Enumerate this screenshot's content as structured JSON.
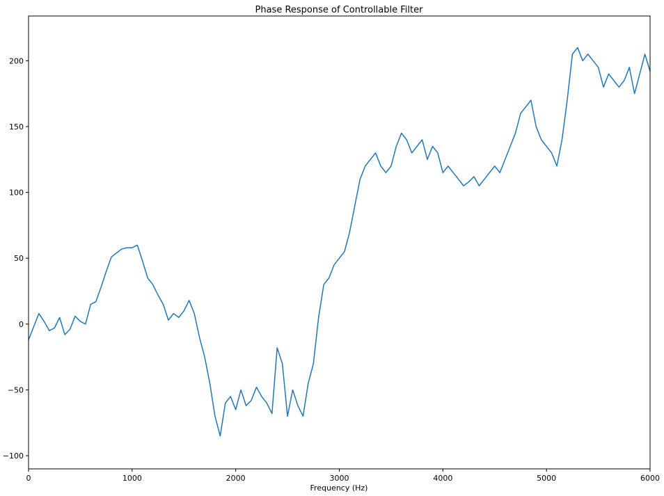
{
  "chart_data": {
    "type": "line",
    "title": "Phase Response of Controllable Filter",
    "xlabel": "Frequency (Hz)",
    "ylabel": "",
    "xlim": [
      0,
      6000
    ],
    "ylim": [
      -110,
      234
    ],
    "grid": false,
    "x_ticks": [
      {
        "value": 0,
        "label": "0"
      },
      {
        "value": 1000,
        "label": "1000"
      },
      {
        "value": 2000,
        "label": "2000"
      },
      {
        "value": 3000,
        "label": "3000"
      },
      {
        "value": 4000,
        "label": "4000"
      },
      {
        "value": 5000,
        "label": "5000"
      },
      {
        "value": 6000,
        "label": "6000"
      }
    ],
    "y_ticks": [
      {
        "value": -100,
        "label": "−100"
      },
      {
        "value": -50,
        "label": "−50"
      },
      {
        "value": 0,
        "label": "0"
      },
      {
        "value": 50,
        "label": "50"
      },
      {
        "value": 100,
        "label": "100"
      },
      {
        "value": 150,
        "label": "150"
      },
      {
        "value": 200,
        "label": "200"
      }
    ],
    "series": [
      {
        "color": "#1f77b4",
        "x": [
          0,
          50,
          100,
          150,
          200,
          250,
          300,
          350,
          400,
          450,
          500,
          550,
          600,
          650,
          700,
          750,
          800,
          850,
          900,
          950,
          1000,
          1050,
          1100,
          1150,
          1200,
          1250,
          1300,
          1350,
          1400,
          1450,
          1500,
          1550,
          1600,
          1650,
          1700,
          1750,
          1800,
          1850,
          1900,
          1950,
          2000,
          2050,
          2100,
          2150,
          2200,
          2250,
          2300,
          2350,
          2400,
          2450,
          2500,
          2550,
          2600,
          2650,
          2700,
          2750,
          2800,
          2850,
          2900,
          2950,
          3000,
          3050,
          3100,
          3150,
          3200,
          3250,
          3300,
          3350,
          3400,
          3450,
          3500,
          3550,
          3600,
          3650,
          3700,
          3750,
          3800,
          3850,
          3900,
          3950,
          4000,
          4050,
          4100,
          4150,
          4200,
          4250,
          4300,
          4350,
          4400,
          4450,
          4500,
          4550,
          4600,
          4650,
          4700,
          4750,
          4800,
          4850,
          4900,
          4950,
          5000,
          5050,
          5100,
          5150,
          5200,
          5250,
          5300,
          5350,
          5400,
          5450,
          5500,
          5550,
          5600,
          5650,
          5700,
          5750,
          5800,
          5850,
          5900,
          5950,
          6000
        ],
        "y": [
          -12,
          -2,
          8,
          2,
          -5,
          -3,
          5,
          -8,
          -4,
          6,
          2,
          0,
          15,
          17,
          28,
          40,
          51,
          54,
          57,
          58,
          58,
          60,
          48,
          35,
          30,
          22,
          15,
          3,
          8,
          5,
          10,
          18,
          8,
          -10,
          -25,
          -45,
          -70,
          -85,
          -60,
          -55,
          -65,
          -50,
          -62,
          -58,
          -48,
          -55,
          -60,
          -68,
          -18,
          -30,
          -70,
          -50,
          -62,
          -70,
          -45,
          -30,
          5,
          30,
          35,
          45,
          50,
          55,
          70,
          90,
          110,
          120,
          125,
          130,
          120,
          115,
          120,
          135,
          145,
          140,
          130,
          135,
          140,
          125,
          135,
          130,
          115,
          120,
          115,
          110,
          105,
          108,
          112,
          105,
          110,
          115,
          120,
          115,
          125,
          135,
          145,
          160,
          165,
          170,
          150,
          140,
          135,
          130,
          120,
          140,
          170,
          205,
          210,
          200,
          205,
          200,
          195,
          180,
          190,
          185,
          180,
          185,
          195,
          175,
          190,
          205,
          192
        ]
      }
    ]
  }
}
